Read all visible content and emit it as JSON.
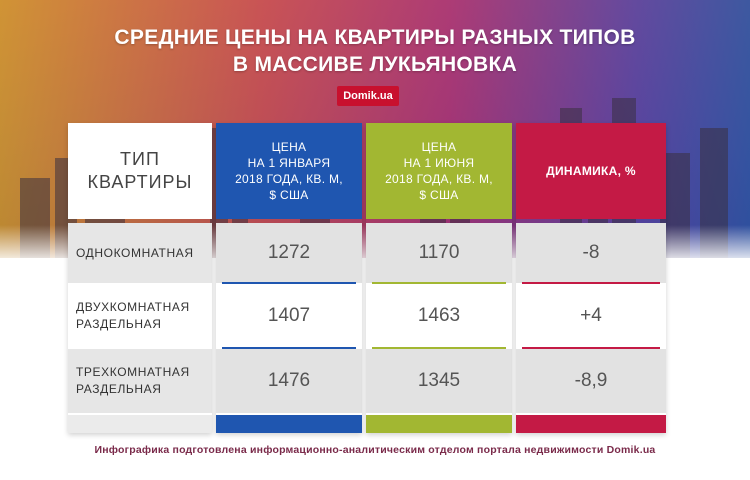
{
  "header": {
    "title_line1": "СРЕДНИЕ ЦЕНЫ НА КВАРТИРЫ РАЗНЫХ ТИПОВ",
    "title_line2": "В МАССИВЕ ЛУКЬЯНОВКА",
    "brand": "Domik.ua"
  },
  "table": {
    "columns": [
      "ТИП\nКВАРТИРЫ",
      "ЦЕНА\nНА 1 ЯНВАРЯ\n2018 ГОДА, КВ. М,\n$ США",
      "ЦЕНА\nНА 1 ИЮНЯ\n2018 ГОДА, КВ. М,\n$ США",
      "ДИНАМИКА, %"
    ],
    "rows": [
      {
        "type": "ОДНОКОМНАТНАЯ",
        "jan": "1272",
        "jun": "1170",
        "change": "-8"
      },
      {
        "type": "ДВУХКОМНАТНАЯ\nРАЗДЕЛЬНАЯ",
        "jan": "1407",
        "jun": "1463",
        "change": "+4"
      },
      {
        "type": "ТРЕХКОМНАТНАЯ\nРАЗДЕЛЬНАЯ",
        "jan": "1476",
        "jun": "1345",
        "change": "-8,9"
      }
    ]
  },
  "footer": {
    "note": "Инфографика подготовлена информационно-аналитическим отделом портала недвижимости Domik.ua"
  },
  "colors": {
    "january": "#1f56b0",
    "june": "#a2b732",
    "dynamics": "#c41a45",
    "brand": "#c8102e"
  }
}
